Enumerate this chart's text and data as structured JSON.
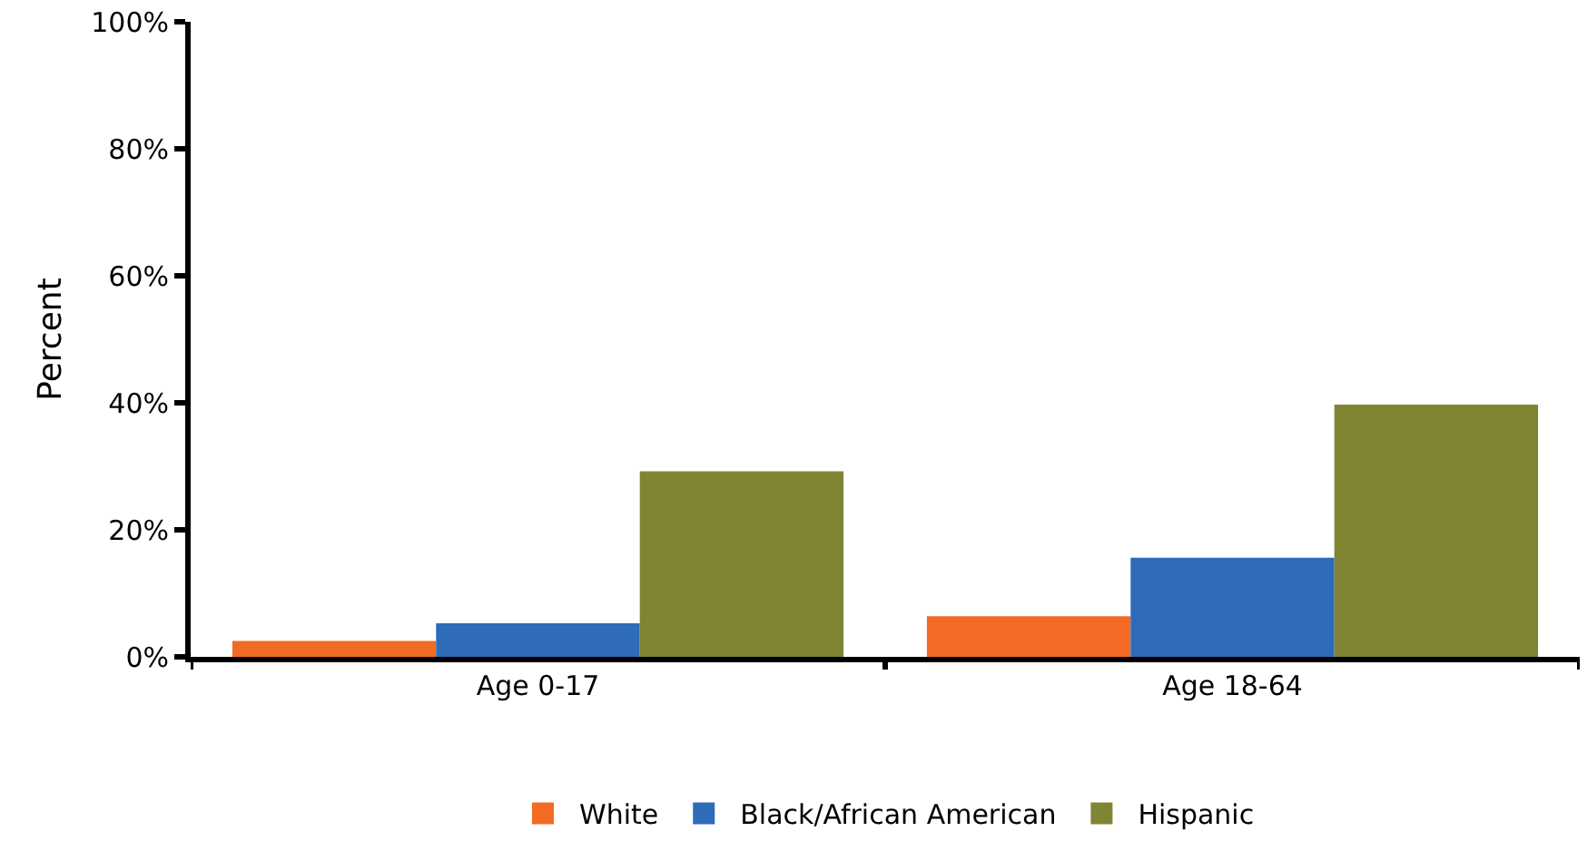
{
  "chart_data": {
    "type": "bar",
    "ylabel": "Percent",
    "categories": [
      "Age 0-17",
      "Age 18-64"
    ],
    "series": [
      {
        "name": "White",
        "color": "#f26a24",
        "values": [
          2.5,
          6.4
        ]
      },
      {
        "name": "Black/African American",
        "color": "#2e6bb8",
        "values": [
          5.3,
          15.6
        ]
      },
      {
        "name": "Hispanic",
        "color": "#7f8533",
        "values": [
          29.2,
          39.7
        ]
      }
    ],
    "ylim": [
      0,
      100
    ],
    "yticks": [
      {
        "value": 0,
        "label": "0%"
      },
      {
        "value": 20,
        "label": "20%"
      },
      {
        "value": 40,
        "label": "40%"
      },
      {
        "value": 60,
        "label": "60%"
      },
      {
        "value": 80,
        "label": "80%"
      },
      {
        "value": 100,
        "label": "100%"
      }
    ],
    "grid": false,
    "legend": "bottom"
  }
}
